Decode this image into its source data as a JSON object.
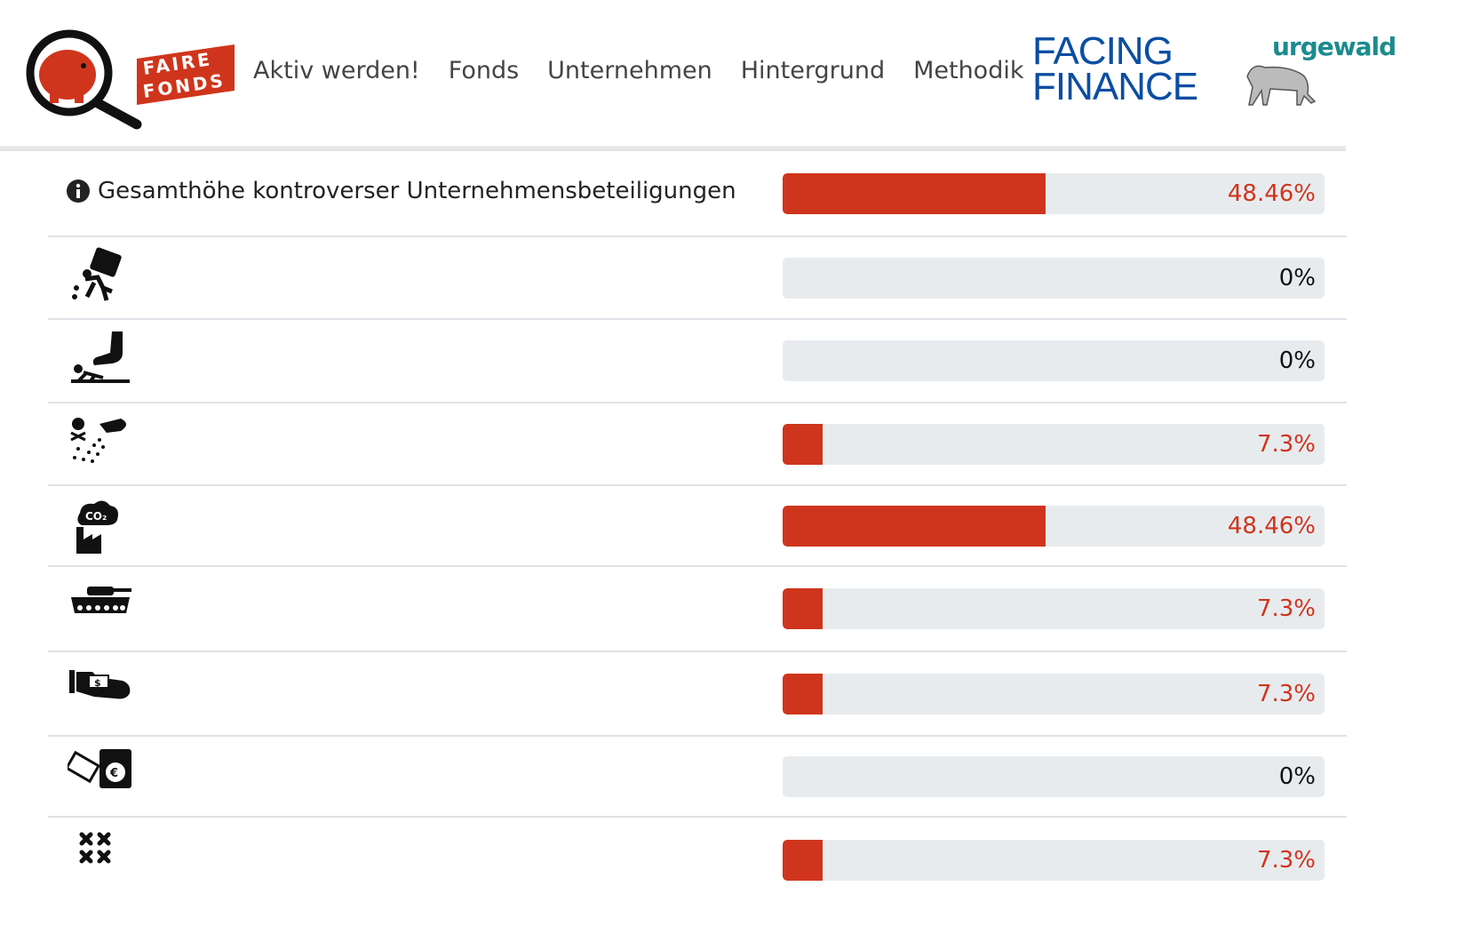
{
  "header": {
    "logo_text": "FAIRE FONDS",
    "nav": [
      "Aktiv werden!",
      "Fonds",
      "Unternehmen",
      "Hintergrund",
      "Methodik"
    ],
    "partner1_line1": "FACING",
    "partner1_line2": "FINANCE",
    "partner2": "urgewald"
  },
  "colors": {
    "accent": "#cf351c",
    "track": "#e8ebee"
  },
  "summary": {
    "label": "Gesamthöhe kontroverser Unternehmensbeteiligungen",
    "value": "48.46%",
    "percent": 48.46
  },
  "rows": [
    {
      "icon": "forced-labor-icon",
      "value": "0%",
      "percent": 0
    },
    {
      "icon": "human-rights-abuse-icon",
      "value": "0%",
      "percent": 0
    },
    {
      "icon": "pollution-icon",
      "value": "7.3%",
      "percent": 7.3
    },
    {
      "icon": "co2-factory-icon",
      "value": "48.46%",
      "percent": 48.46
    },
    {
      "icon": "tank-weapons-icon",
      "value": "7.3%",
      "percent": 7.3
    },
    {
      "icon": "bribery-icon",
      "value": "7.3%",
      "percent": 7.3
    },
    {
      "icon": "money-laundering-icon",
      "value": "0%",
      "percent": 0
    },
    {
      "icon": "tax-avoidance-icon",
      "value": "7.3%",
      "percent": 7.3
    }
  ]
}
